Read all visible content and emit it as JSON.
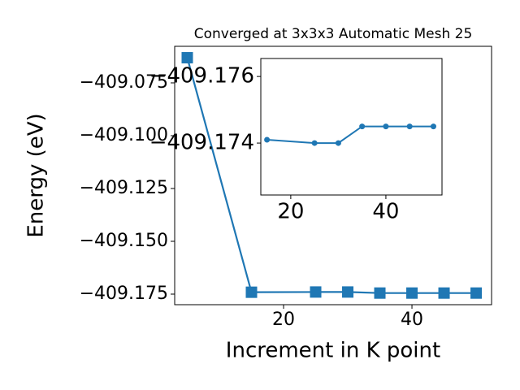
{
  "chart_data": [
    {
      "type": "line",
      "title": "Converged at 3x3x3 Automatic Mesh 25",
      "x_label": "Increment in K point",
      "y_label": "Energy (eV)",
      "series": [
        {
          "color": "#1f77b4",
          "marker": "square",
          "x": [
            5,
            15,
            25,
            30,
            35,
            40,
            45,
            50
          ],
          "values": [
            -409.0631,
            -409.1741,
            -409.174,
            -409.174,
            -409.1745,
            -409.1745,
            -409.1745,
            -409.1745
          ]
        }
      ],
      "xlim": [
        3.04,
        52.4
      ],
      "xticks": [
        20,
        40
      ],
      "ylim": [
        -409.18,
        -409.0577
      ],
      "yticks": [
        {
          "value": -409.175,
          "label": "−409.175"
        },
        {
          "value": -409.15,
          "label": "−409.150"
        },
        {
          "value": -409.125,
          "label": "−409.125"
        },
        {
          "value": -409.1,
          "label": "−409.100"
        },
        {
          "value": -409.075,
          "label": "−409.075"
        }
      ]
    },
    {
      "type": "line",
      "series": [
        {
          "color": "#1f77b4",
          "marker": "circle",
          "x": [
            15,
            25,
            30,
            35,
            40,
            45,
            50
          ],
          "values": [
            -409.1741,
            -409.174,
            -409.174,
            -409.1745,
            -409.1745,
            -409.1745,
            -409.1745
          ]
        }
      ],
      "xlim": [
        13.7,
        51.8
      ],
      "xticks": [
        20,
        40
      ],
      "ylim": [
        -409.17244,
        -409.17654
      ],
      "yticks": [
        {
          "value": -409.174,
          "label": "−409.174"
        },
        {
          "value": -409.176,
          "label": "−409.176"
        }
      ]
    }
  ]
}
